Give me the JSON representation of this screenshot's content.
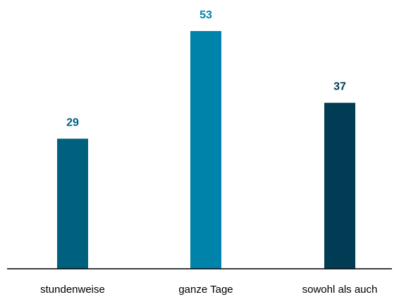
{
  "chart_data": {
    "type": "bar",
    "categories": [
      "stundenweise",
      "ganze Tage",
      "sowohl als auch"
    ],
    "values": [
      29,
      53,
      37
    ],
    "ylim": [
      0,
      53
    ],
    "grid": false,
    "colors": {
      "bars": [
        "#00617f",
        "#0083aa",
        "#003c54"
      ],
      "labels": [
        "#00617f",
        "#0083aa",
        "#003c54"
      ],
      "axis": "#000000"
    }
  }
}
